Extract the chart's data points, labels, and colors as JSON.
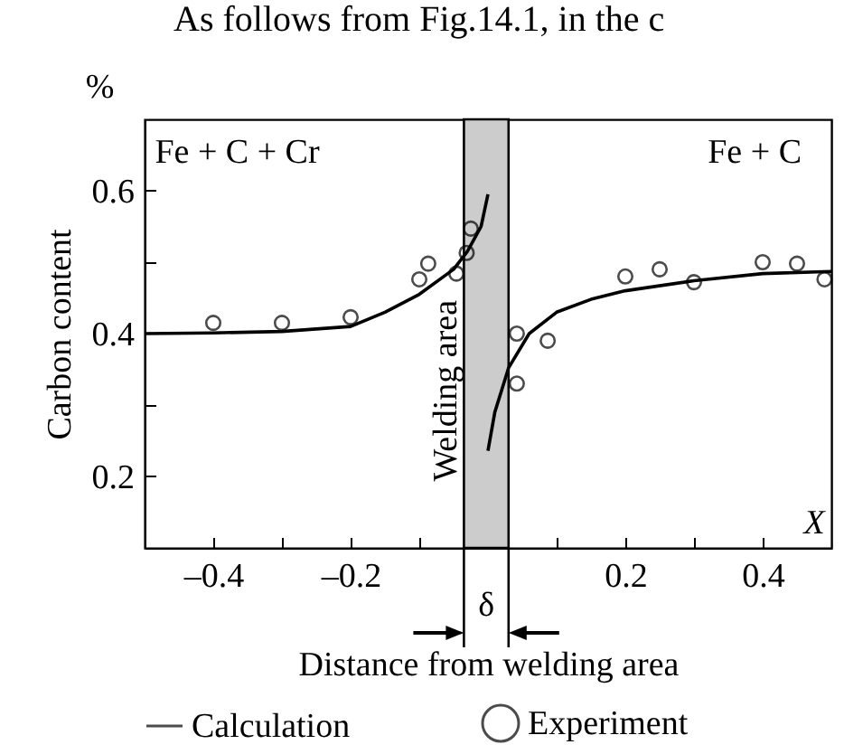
{
  "chart_data": {
    "type": "line",
    "xlabel": "Distance from welding area",
    "ylabel": "Carbon content",
    "annotations": [
      "As follows from Fig.14.1, in the c",
      "%",
      "Fe + C + Cr",
      "Fe + C",
      "X",
      "δ"
    ],
    "series": [
      {
        "name": "Calculation",
        "color": "#000000",
        "marker": "none",
        "x": [
          -0.5,
          -0.4,
          -0.3,
          -0.2,
          -0.15,
          -0.1,
          -0.05,
          -0.03,
          -0.01,
          0.0,
          null,
          0.0,
          0.01,
          0.03,
          0.06,
          0.1,
          0.15,
          0.2,
          0.3,
          0.4,
          0.5
        ],
        "values": [
          0.4,
          0.401,
          0.403,
          0.41,
          0.43,
          0.455,
          0.49,
          0.515,
          0.55,
          0.595,
          null,
          0.236,
          0.29,
          0.352,
          0.4,
          0.43,
          0.448,
          0.46,
          0.474,
          0.484,
          0.487
        ]
      },
      {
        "name": "Experiment",
        "type": "scatter",
        "color": "#000000",
        "marker": "circle",
        "x": [
          -0.4,
          -0.3,
          -0.2,
          -0.1,
          -0.087,
          -0.046,
          -0.031,
          -0.025,
          0.042,
          0.042,
          0.087,
          0.2,
          0.25,
          0.3,
          0.4,
          0.45,
          0.49
        ],
        "values": [
          0.415,
          0.415,
          0.423,
          0.476,
          0.498,
          0.484,
          0.513,
          0.547,
          0.4,
          0.33,
          0.39,
          0.48,
          0.49,
          0.472,
          0.5,
          0.498,
          0.476
        ]
      }
    ],
    "bands": [
      {
        "axis": "x",
        "from": -0.035,
        "to": 0.03,
        "label": "Welding area",
        "color": "#cccccc"
      }
    ],
    "xlim": [
      -0.5,
      0.5
    ],
    "ylim": [
      0.1,
      0.7
    ],
    "xticks": [
      {
        "value": -0.4,
        "label": "–0.4"
      },
      {
        "value": -0.3,
        "label": null
      },
      {
        "value": -0.2,
        "label": "–0.2"
      },
      {
        "value": -0.1,
        "label": null
      },
      {
        "value": 0.1,
        "label": null
      },
      {
        "value": 0.2,
        "label": "0.2"
      },
      {
        "value": 0.3,
        "label": null
      },
      {
        "value": 0.4,
        "label": "0.4"
      }
    ],
    "yticks": [
      0.2,
      {
        "value": 0.3,
        "label": null
      },
      0.4,
      {
        "value": 0.5,
        "label": null
      },
      0.6
    ],
    "grid": false,
    "legend": "bottom"
  }
}
